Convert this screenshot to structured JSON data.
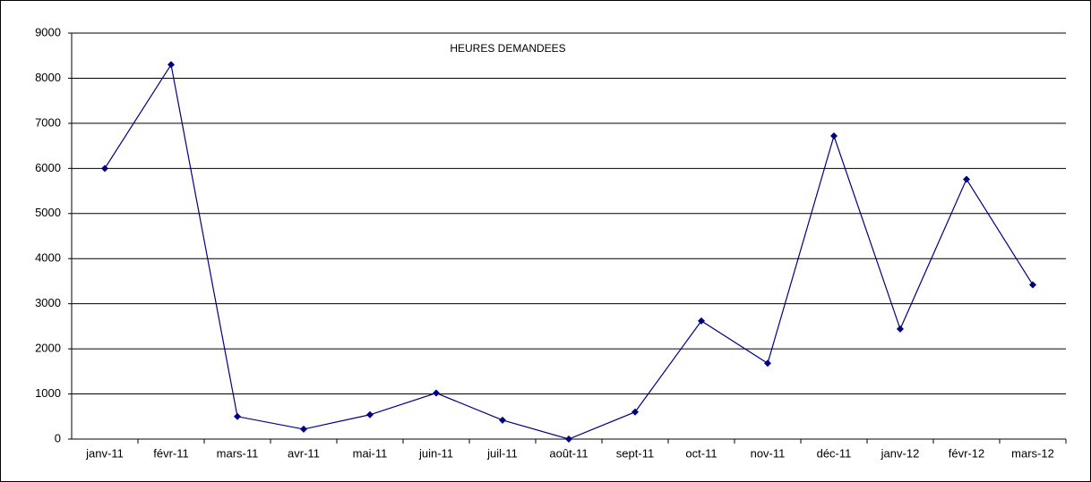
{
  "chart_data": {
    "type": "line",
    "title": "HEURES DEMANDEES",
    "categories": [
      "janv-11",
      "févr-11",
      "mars-11",
      "avr-11",
      "mai-11",
      "juin-11",
      "juil-11",
      "août-11",
      "sept-11",
      "oct-11",
      "nov-11",
      "déc-11",
      "janv-12",
      "févr-12",
      "mars-12"
    ],
    "values": [
      6000,
      8300,
      500,
      220,
      540,
      1020,
      420,
      0,
      600,
      2620,
      1680,
      6720,
      2440,
      5760,
      3420
    ],
    "color": "#000080",
    "ylim": [
      0,
      9000
    ],
    "yticks": [
      0,
      1000,
      2000,
      3000,
      4000,
      5000,
      6000,
      7000,
      8000,
      9000
    ],
    "grid": true
  }
}
